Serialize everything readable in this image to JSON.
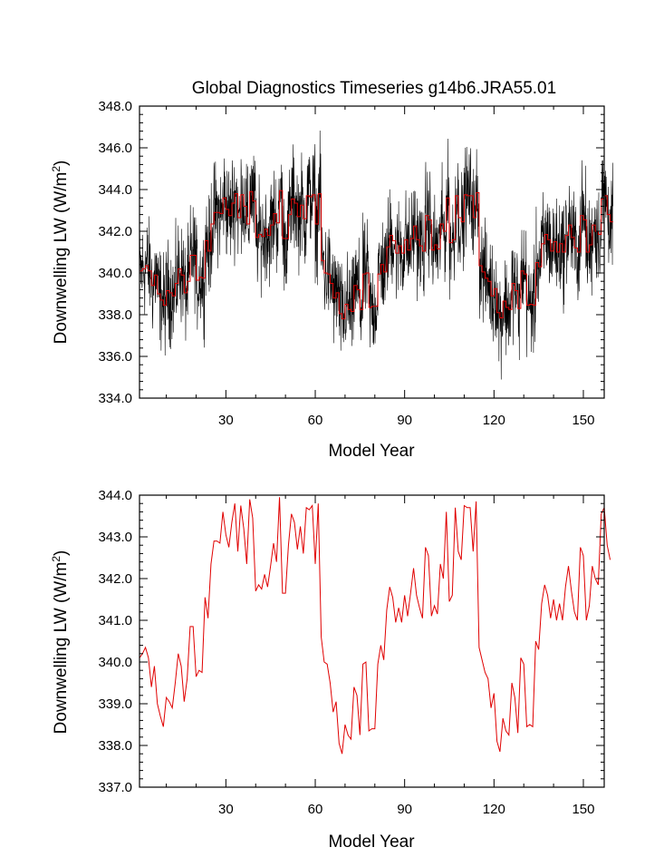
{
  "chart_data": [
    {
      "type": "line",
      "title": "Global Diagnostics Timeseries g14b6.JRA55.01",
      "xlabel": "Model Year",
      "ylabel_main": "Downwelling LW (W/m",
      "ylabel_sup": "2",
      "ylabel_close": ")",
      "xlim": [
        1,
        157
      ],
      "ylim": [
        334.0,
        348.0
      ],
      "x_ticks": [
        30,
        60,
        90,
        120,
        150
      ],
      "x_tick_labels": [
        "30",
        "60",
        "90",
        "120",
        "150"
      ],
      "y_ticks": [
        334,
        336,
        338,
        340,
        342,
        344,
        346,
        348
      ],
      "y_tick_labels": [
        "334.0",
        "336.0",
        "338.0",
        "340.0",
        "342.0",
        "344.0",
        "346.0",
        "348.0"
      ],
      "series": [
        {
          "name": "monthly",
          "color": "#000000",
          "description": "monthly values (1872 points) oscillating ~±2.5 W/m2 around the annual mean",
          "amplitude": 2.6
        },
        {
          "name": "annual mean",
          "color": "#e00000",
          "values_ref": "annual"
        }
      ]
    },
    {
      "type": "line",
      "title": "",
      "xlabel": "Model Year",
      "ylabel_main": "Downwelling LW (W/m",
      "ylabel_sup": "2",
      "ylabel_close": ")",
      "xlim": [
        1,
        157
      ],
      "ylim": [
        337.0,
        344.0
      ],
      "x_ticks": [
        30,
        60,
        90,
        120,
        150
      ],
      "x_tick_labels": [
        "30",
        "60",
        "90",
        "120",
        "150"
      ],
      "y_ticks": [
        337,
        338,
        339,
        340,
        341,
        342,
        343,
        344
      ],
      "y_tick_labels": [
        "337.0",
        "338.0",
        "339.0",
        "340.0",
        "341.0",
        "342.0",
        "343.0",
        "344.0"
      ],
      "series": [
        {
          "name": "annual mean",
          "color": "#e00000",
          "x_start": 1,
          "values": [
            340.1,
            340.2,
            340.35,
            340.1,
            339.4,
            339.9,
            339.0,
            338.7,
            338.45,
            339.15,
            339.05,
            338.9,
            339.5,
            340.2,
            339.9,
            339.05,
            339.6,
            340.85,
            340.85,
            339.65,
            339.8,
            339.75,
            341.55,
            341.05,
            342.35,
            342.9,
            342.9,
            342.85,
            343.6,
            343.05,
            342.75,
            343.35,
            343.8,
            342.65,
            343.75,
            343.2,
            342.35,
            343.9,
            343.45,
            341.7,
            341.85,
            341.75,
            342.1,
            341.8,
            342.3,
            342.85,
            342.4,
            343.95,
            341.65,
            341.65,
            342.8,
            343.55,
            343.35,
            342.7,
            343.25,
            342.6,
            343.7,
            343.65,
            343.75,
            342.35,
            343.8,
            340.6,
            340.0,
            339.95,
            339.5,
            338.8,
            339.05,
            338.05,
            337.8,
            338.5,
            338.25,
            338.15,
            339.4,
            339.2,
            338.25,
            339.95,
            340.0,
            338.35,
            338.4,
            338.4,
            339.95,
            340.4,
            340.05,
            341.25,
            341.8,
            341.55,
            340.95,
            341.3,
            340.95,
            341.6,
            341.1,
            341.65,
            342.25,
            341.6,
            341.3,
            341.05,
            342.75,
            342.55,
            341.1,
            341.35,
            341.15,
            342.35,
            342.0,
            343.6,
            341.45,
            341.6,
            343.7,
            342.65,
            342.45,
            343.75,
            343.7,
            343.7,
            342.65,
            343.85,
            340.35,
            340.05,
            339.75,
            339.6,
            338.9,
            339.25,
            338.1,
            337.85,
            338.65,
            338.35,
            338.25,
            339.5,
            339.15,
            338.3,
            340.1,
            339.95,
            338.45,
            338.5,
            338.45,
            340.5,
            340.3,
            341.4,
            341.85,
            341.6,
            341.05,
            341.5,
            341.0,
            341.4,
            341.0,
            341.8,
            342.3,
            341.7,
            341.2,
            341.0,
            342.75,
            342.55,
            341.0,
            341.35,
            342.3,
            342.0,
            341.85,
            343.55,
            343.7,
            342.8,
            342.45
          ]
        }
      ]
    }
  ]
}
